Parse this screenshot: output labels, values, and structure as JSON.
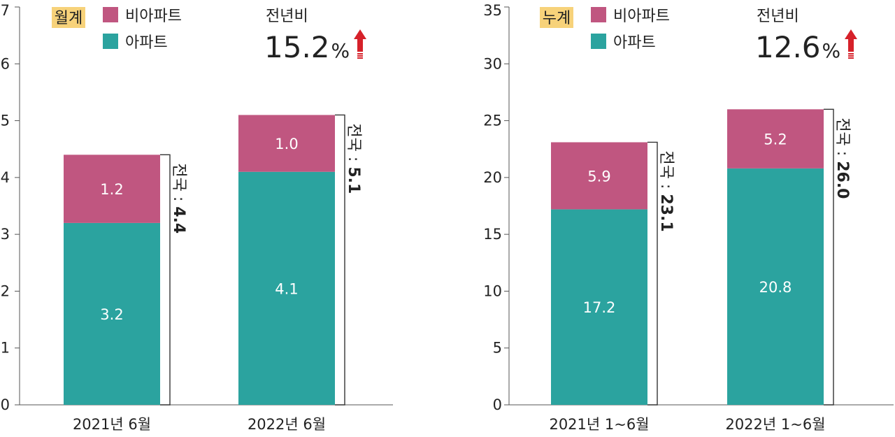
{
  "colors": {
    "apartment": "#2ba39f",
    "non_apartment": "#c05680",
    "badge": "#f7d27a",
    "up_arrow": "#d6212a",
    "axis": "#555555",
    "text": "#222222"
  },
  "chart_data": [
    {
      "type": "bar",
      "stacked": true,
      "badge": "월계",
      "legend": [
        "비아파트",
        "아파트"
      ],
      "legend_position": "top",
      "yoy_label": "전년비",
      "yoy_value": "15.2",
      "yoy_unit": "%",
      "yoy_direction": "up",
      "categories": [
        "2021년 6월",
        "2022년 6월"
      ],
      "series": [
        {
          "name": "아파트",
          "values": [
            3.2,
            4.1
          ],
          "labels": [
            "3.2",
            "4.1"
          ]
        },
        {
          "name": "비아파트",
          "values": [
            1.2,
            1.0
          ],
          "labels": [
            "1.2",
            "1.0"
          ]
        }
      ],
      "totals": [
        4.4,
        5.1
      ],
      "total_prefix": "전국 : ",
      "total_labels": [
        "4.4",
        "5.1"
      ],
      "ylim": [
        0,
        7
      ],
      "yticks": [
        "0",
        "1",
        "2",
        "3",
        "4",
        "5",
        "6",
        "7"
      ],
      "grid": false
    },
    {
      "type": "bar",
      "stacked": true,
      "badge": "누계",
      "legend": [
        "비아파트",
        "아파트"
      ],
      "legend_position": "top",
      "yoy_label": "전년비",
      "yoy_value": "12.6",
      "yoy_unit": "%",
      "yoy_direction": "up",
      "categories": [
        "2021년 1~6월",
        "2022년 1~6월"
      ],
      "series": [
        {
          "name": "아파트",
          "values": [
            17.2,
            20.8
          ],
          "labels": [
            "17.2",
            "20.8"
          ]
        },
        {
          "name": "비아파트",
          "values": [
            5.9,
            5.2
          ],
          "labels": [
            "5.9",
            "5.2"
          ]
        }
      ],
      "totals": [
        23.1,
        26.0
      ],
      "total_prefix": "전국 : ",
      "total_labels": [
        "23.1",
        "26.0"
      ],
      "ylim": [
        0,
        35
      ],
      "yticks": [
        "0",
        "5",
        "10",
        "15",
        "20",
        "25",
        "30",
        "35"
      ],
      "grid": false
    }
  ]
}
